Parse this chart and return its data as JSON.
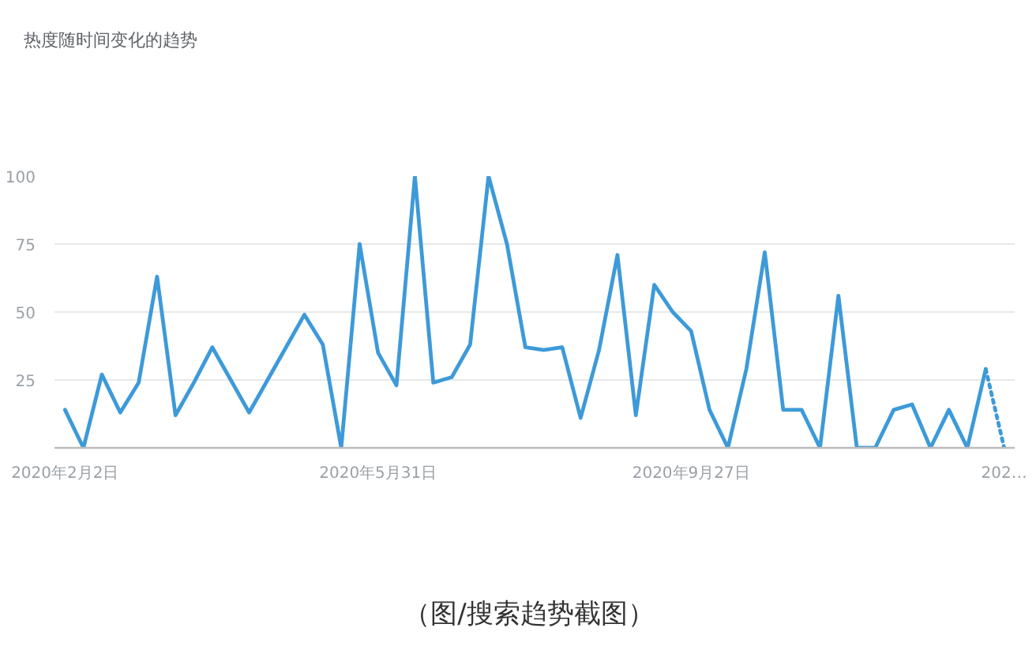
{
  "chart_data": {
    "type": "line",
    "title": "热度随时间变化的趋势",
    "annotations": [
      "（图/搜索趋势截图）"
    ],
    "x": [
      "2020-02-02",
      "2020-02-09",
      "2020-02-16",
      "2020-02-23",
      "2020-03-01",
      "2020-03-08",
      "2020-03-15",
      "2020-03-22",
      "2020-03-29",
      "2020-04-05",
      "2020-04-12",
      "2020-04-19",
      "2020-04-26",
      "2020-05-03",
      "2020-05-10",
      "2020-05-17",
      "2020-05-24",
      "2020-05-31",
      "2020-06-07",
      "2020-06-14",
      "2020-06-21",
      "2020-06-28",
      "2020-07-05",
      "2020-07-12",
      "2020-07-19",
      "2020-07-26",
      "2020-08-02",
      "2020-08-09",
      "2020-08-16",
      "2020-08-23",
      "2020-08-30",
      "2020-09-06",
      "2020-09-13",
      "2020-09-20",
      "2020-09-27",
      "2020-10-04",
      "2020-10-11",
      "2020-10-18",
      "2020-10-25",
      "2020-11-01",
      "2020-11-08",
      "2020-11-15",
      "2020-11-22",
      "2020-11-29",
      "2020-12-06",
      "2020-12-13",
      "2020-12-20",
      "2020-12-27",
      "2021-01-03",
      "2021-01-10",
      "2021-01-17"
    ],
    "series": [
      {
        "color": "#3d9ad9",
        "line_style": "solid",
        "values": [
          14,
          0,
          27,
          13,
          24,
          63,
          12,
          24,
          37,
          25,
          13,
          25,
          37,
          49,
          38,
          0,
          75,
          35,
          23,
          100,
          24,
          26,
          38,
          100,
          75,
          37,
          36,
          37,
          11,
          36,
          71,
          12,
          60,
          50,
          43,
          14,
          0,
          29,
          72,
          14,
          14,
          0,
          56,
          0,
          0,
          14,
          16,
          0,
          14,
          0,
          29
        ]
      },
      {
        "color": "#3d9ad9",
        "line_style": "dotted",
        "x": [
          "2021-01-17",
          "2021-01-24"
        ],
        "values": [
          29,
          0
        ]
      }
    ],
    "xlim": [
      "2020-01-29",
      "2021-01-28"
    ],
    "xticks": [
      {
        "value": "2020-02-02",
        "label": "2020年2月2日"
      },
      {
        "value": "2020-05-31",
        "label": "2020年5月31日"
      },
      {
        "value": "2020-09-27",
        "label": "2020年9月27日"
      },
      {
        "value": "2021-01-24",
        "label": "202…"
      }
    ],
    "ylim": [
      0,
      100
    ],
    "yticks": [
      25,
      50,
      75,
      100
    ],
    "grid": "y",
    "marker": "none"
  }
}
